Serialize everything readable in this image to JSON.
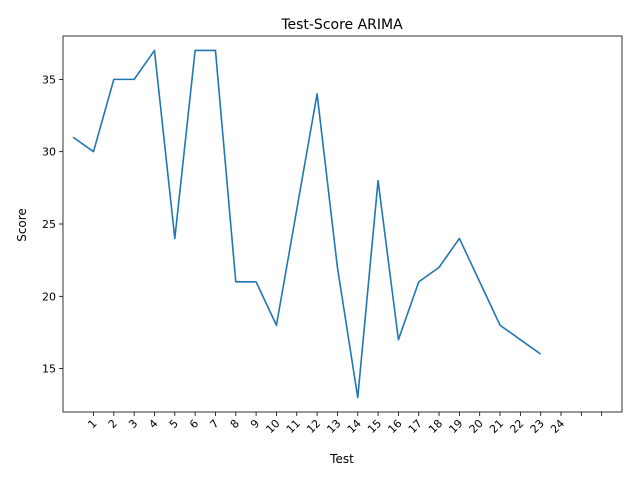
{
  "chart_data": {
    "type": "line",
    "title": "Test-Score ARIMA",
    "xlabel": "Test",
    "ylabel": "Score",
    "x_tick_labels": [
      "1",
      "2",
      "3",
      "4",
      "5",
      "6",
      "7",
      "8",
      "9",
      "10",
      "11",
      "12",
      "13",
      "14",
      "15",
      "16",
      "17",
      "18",
      "19",
      "20",
      "21",
      "22",
      "23",
      "24",
      "",
      ""
    ],
    "y_ticks": [
      15,
      20,
      25,
      30,
      35
    ],
    "xlim": [
      -0.5,
      27.0
    ],
    "ylim": [
      12.0,
      38.0
    ],
    "grid": false,
    "series": [
      {
        "color": "#1f77b4",
        "x": [
          0,
          1,
          2,
          3,
          4,
          5,
          6,
          7,
          8,
          9,
          10,
          11,
          12,
          13,
          14,
          15,
          16,
          17,
          18,
          19,
          20,
          21,
          22,
          23
        ],
        "y": [
          31,
          30,
          35,
          35,
          37,
          24,
          37,
          37,
          21,
          21,
          18,
          26,
          34,
          22,
          13,
          28,
          17,
          21,
          22,
          24,
          21,
          18,
          17,
          16
        ]
      }
    ]
  }
}
